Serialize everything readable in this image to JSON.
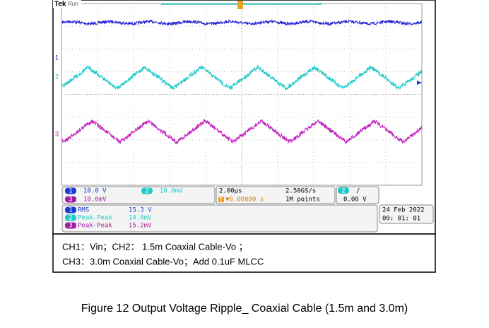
{
  "scope": {
    "brand": "Tek",
    "status": "Run",
    "markers": [
      "1",
      "2",
      "3"
    ],
    "settings": [
      {
        "badge": "1",
        "scale": "10.0 V"
      },
      {
        "badge": "2",
        "scale": "10.0mV"
      },
      {
        "badge": "3",
        "scale": "10.0mV"
      }
    ],
    "timebase": {
      "horizontal": "2.00µs",
      "position_badge": "T",
      "position": "▼0.00000 s",
      "sample_rate": "2.50GS/s",
      "record": "1M points"
    },
    "trigger": {
      "source": "2",
      "slope": "/",
      "level": "0.00 V"
    },
    "measurements": [
      {
        "badge": "1",
        "name": "RMS",
        "value": "15.3 V"
      },
      {
        "badge": "2",
        "name": "Peak-Peak",
        "value": "14.0mV"
      },
      {
        "badge": "3",
        "name": "Peak-Peak",
        "value": "15.2mV"
      }
    ],
    "date": "24 Feb  2022",
    "time": "09: 01: 01"
  },
  "note": {
    "lines": [
      "CH1：Vin；CH2： 1.5m Coaxial Cable-Vo ；",
      "CH3：3.0m Coaxial Cable-Vo；Add 0.1uF MLCC"
    ]
  },
  "caption": "Figure 12 Output Voltage Ripple_ Coaxial Cable (1.5m and 3.0m)"
}
